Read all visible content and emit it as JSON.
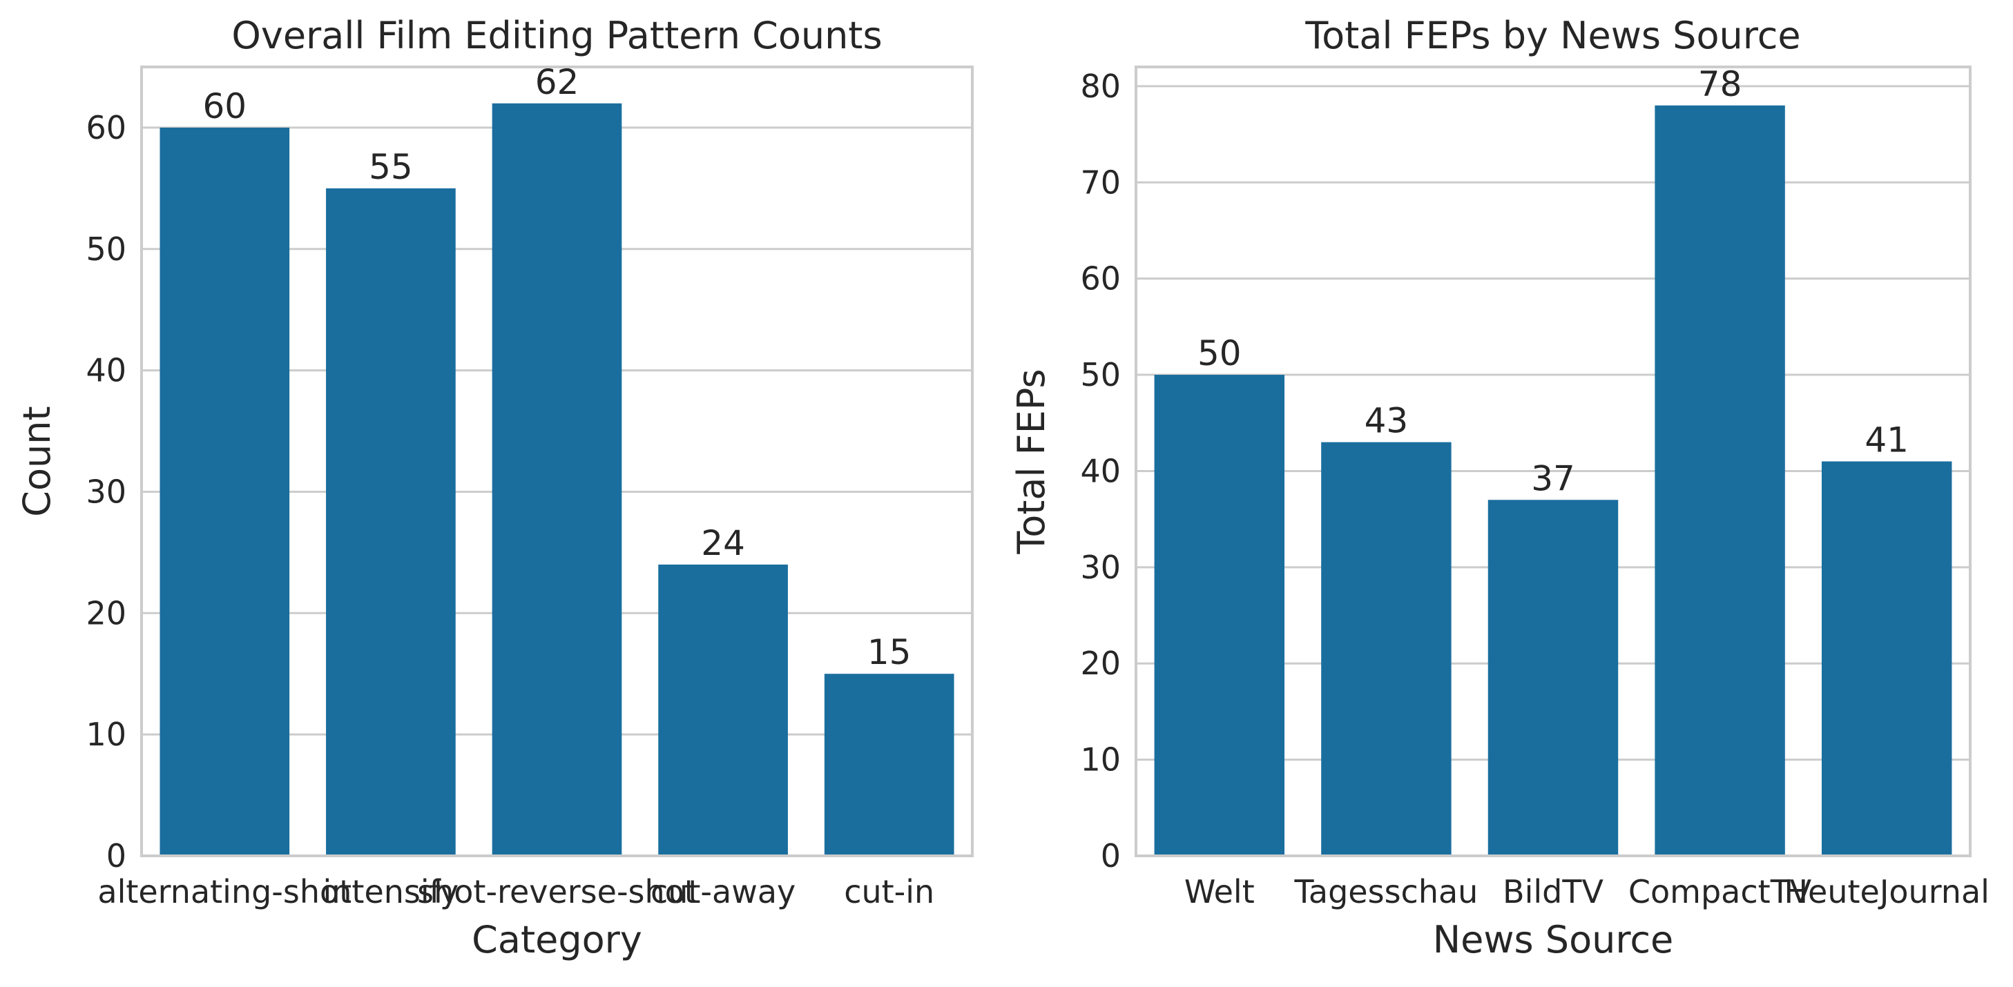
{
  "colors": {
    "bar": "#1a6e9e",
    "grid": "#cccccc",
    "text": "#262626"
  },
  "chart_data": [
    {
      "type": "bar",
      "title": "Overall Film Editing Pattern Counts",
      "xlabel": "Category",
      "ylabel": "Count",
      "categories": [
        "alternating-shot",
        "intensify",
        "shot-reverse-shot",
        "cut-away",
        "cut-in"
      ],
      "values": [
        60,
        55,
        62,
        24,
        15
      ],
      "yticks": [
        0,
        10,
        20,
        30,
        40,
        50,
        60
      ],
      "ylim": [
        0,
        65
      ],
      "grid": true,
      "legend": "none"
    },
    {
      "type": "bar",
      "title": "Total FEPs by News Source",
      "xlabel": "News Source",
      "ylabel": "Total FEPs",
      "categories": [
        "Welt",
        "Tagesschau",
        "BildTV",
        "CompactTV",
        "HeuteJournal"
      ],
      "values": [
        50,
        43,
        37,
        78,
        41
      ],
      "yticks": [
        0,
        10,
        20,
        30,
        40,
        50,
        60,
        70,
        80
      ],
      "ylim": [
        0,
        82
      ],
      "grid": true,
      "legend": "none"
    }
  ]
}
